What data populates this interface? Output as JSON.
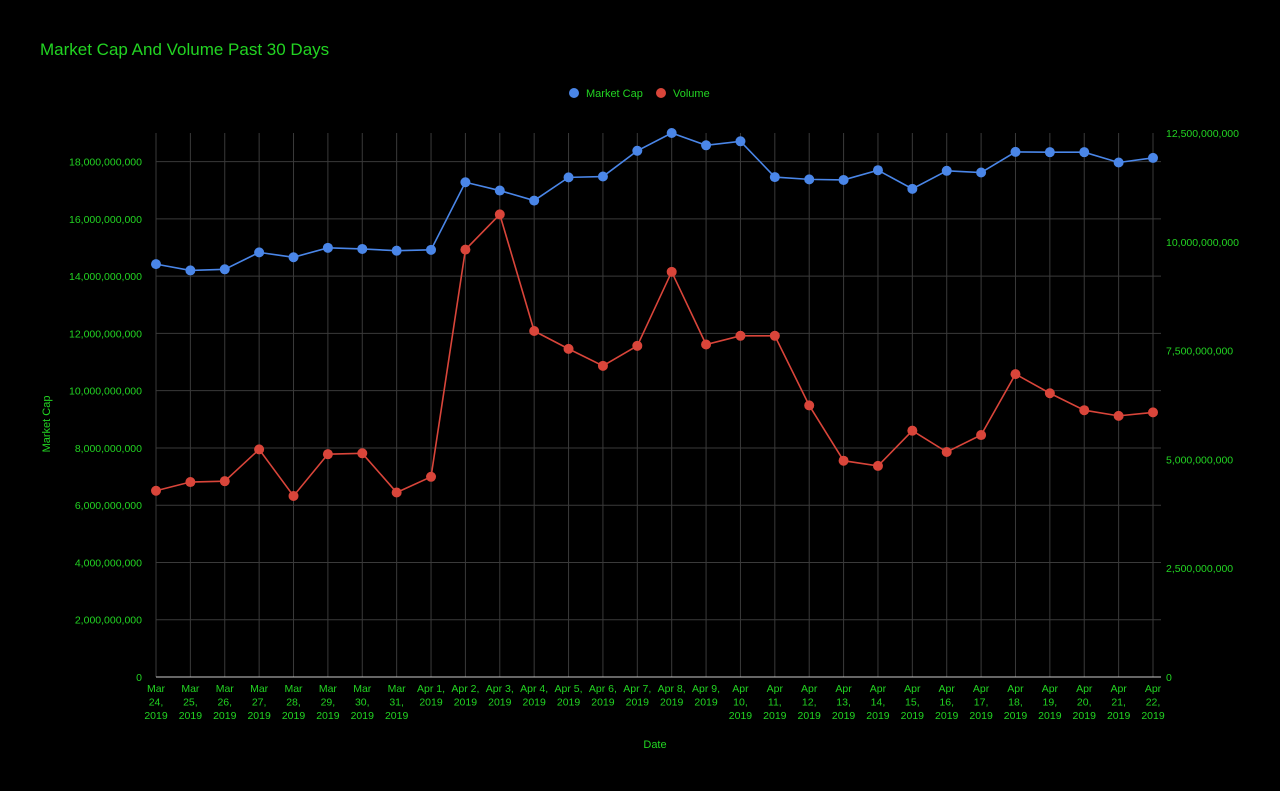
{
  "chart_data": {
    "type": "line",
    "title": "Market Cap And Volume Past 30 Days",
    "xlabel": "Date",
    "ylabel": "Market Cap",
    "y2label": "",
    "ylim": [
      0,
      19000000000
    ],
    "y2lim": [
      0,
      12500000000
    ],
    "yticks": [
      "0",
      "2,000,000,000",
      "4,000,000,000",
      "6,000,000,000",
      "8,000,000,000",
      "10,000,000,000",
      "12,000,000,000",
      "14,000,000,000",
      "16,000,000,000",
      "18,000,000,000"
    ],
    "y2ticks": [
      "0",
      "2,500,000,000",
      "5,000,000,000",
      "7,500,000,000",
      "10,000,000,000",
      "12,500,000,000"
    ],
    "grid": true,
    "legend": "top-center",
    "categories": [
      "Mar 24, 2019",
      "Mar 25, 2019",
      "Mar 26, 2019",
      "Mar 27, 2019",
      "Mar 28, 2019",
      "Mar 29, 2019",
      "Mar 30, 2019",
      "Mar 31, 2019",
      "Apr 1, 2019",
      "Apr 2, 2019",
      "Apr 3, 2019",
      "Apr 4, 2019",
      "Apr 5, 2019",
      "Apr 6, 2019",
      "Apr 7, 2019",
      "Apr 8, 2019",
      "Apr 9, 2019",
      "Apr 10, 2019",
      "Apr 11, 2019",
      "Apr 12, 2019",
      "Apr 13, 2019",
      "Apr 14, 2019",
      "Apr 15, 2019",
      "Apr 16, 2019",
      "Apr 17, 2019",
      "Apr 18, 2019",
      "Apr 19, 2019",
      "Apr 20, 2019",
      "Apr 21, 2019",
      "Apr 22, 2019"
    ],
    "x_tick_labels": [
      [
        "Mar",
        "24,",
        "2019"
      ],
      [
        "Mar",
        "25,",
        "2019"
      ],
      [
        "Mar",
        "26,",
        "2019"
      ],
      [
        "Mar",
        "27,",
        "2019"
      ],
      [
        "Mar",
        "28,",
        "2019"
      ],
      [
        "Mar",
        "29,",
        "2019"
      ],
      [
        "Mar",
        "30,",
        "2019"
      ],
      [
        "Mar",
        "31,",
        "2019"
      ],
      [
        "Apr 1,",
        "2019"
      ],
      [
        "Apr 2,",
        "2019"
      ],
      [
        "Apr 3,",
        "2019"
      ],
      [
        "Apr 4,",
        "2019"
      ],
      [
        "Apr 5,",
        "2019"
      ],
      [
        "Apr 6,",
        "2019"
      ],
      [
        "Apr 7,",
        "2019"
      ],
      [
        "Apr 8,",
        "2019"
      ],
      [
        "Apr 9,",
        "2019"
      ],
      [
        "Apr",
        "10,",
        "2019"
      ],
      [
        "Apr",
        "11,",
        "2019"
      ],
      [
        "Apr",
        "12,",
        "2019"
      ],
      [
        "Apr",
        "13,",
        "2019"
      ],
      [
        "Apr",
        "14,",
        "2019"
      ],
      [
        "Apr",
        "15,",
        "2019"
      ],
      [
        "Apr",
        "16,",
        "2019"
      ],
      [
        "Apr",
        "17,",
        "2019"
      ],
      [
        "Apr",
        "18,",
        "2019"
      ],
      [
        "Apr",
        "19,",
        "2019"
      ],
      [
        "Apr",
        "20,",
        "2019"
      ],
      [
        "Apr",
        "21,",
        "2019"
      ],
      [
        "Apr",
        "22,",
        "2019"
      ]
    ],
    "series": [
      {
        "name": "Market Cap",
        "axis": "left",
        "color": "#4a86e8",
        "values": [
          14420000000,
          14200000000,
          14240000000,
          14830000000,
          14660000000,
          14990000000,
          14950000000,
          14890000000,
          14920000000,
          17280000000,
          16990000000,
          16640000000,
          17450000000,
          17480000000,
          18380000000,
          19000000000,
          18570000000,
          18710000000,
          17460000000,
          17380000000,
          17360000000,
          17700000000,
          17050000000,
          17680000000,
          17620000000,
          18340000000,
          18330000000,
          18330000000,
          17970000000,
          18130000000
        ]
      },
      {
        "name": "Volume",
        "axis": "right",
        "color": "#d9453a",
        "values": [
          4280000000,
          4480000000,
          4500000000,
          5230000000,
          4160000000,
          5120000000,
          5140000000,
          4240000000,
          4600000000,
          9820000000,
          10630000000,
          7950000000,
          7540000000,
          7150000000,
          7610000000,
          9310000000,
          7640000000,
          7840000000,
          7840000000,
          6240000000,
          4970000000,
          4850000000,
          5660000000,
          5170000000,
          5560000000,
          6960000000,
          6520000000,
          6130000000,
          6000000000,
          6080000000
        ]
      }
    ]
  }
}
